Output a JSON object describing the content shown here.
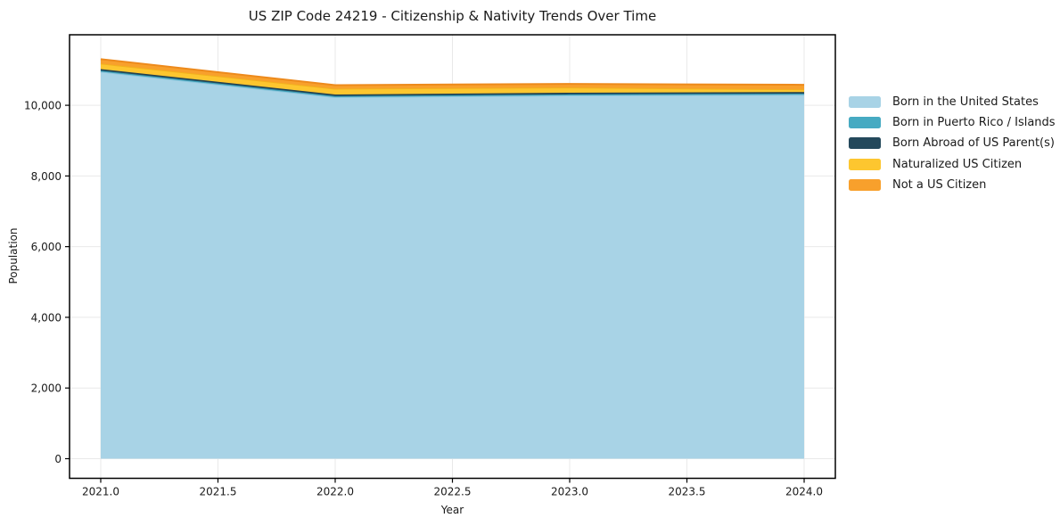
{
  "chart_data": {
    "type": "area",
    "stacked": true,
    "title": "US ZIP Code 24219 - Citizenship & Nativity Trends Over Time",
    "xlabel": "Year",
    "ylabel": "Population",
    "x": [
      2021,
      2022,
      2023,
      2024
    ],
    "series": [
      {
        "name": "Born in the United States",
        "color": "#a8d3e6",
        "line_color": "#8ec6dd",
        "values": [
          10950,
          10230,
          10280,
          10300
        ]
      },
      {
        "name": "Born in Puerto Rico / Islands",
        "color": "#46aac2",
        "line_color": "#3b9cb4",
        "values": [
          30,
          30,
          30,
          30
        ]
      },
      {
        "name": "Born Abroad of US Parent(s)",
        "color": "#24495c",
        "line_color": "#1e3f50",
        "values": [
          45,
          45,
          45,
          45
        ]
      },
      {
        "name": "Naturalized US Citizen",
        "color": "#fdc62f",
        "line_color": "#f2b11d",
        "values": [
          155,
          165,
          150,
          75
        ]
      },
      {
        "name": "Not a US Citizen",
        "color": "#f8a02c",
        "line_color": "#ed8a1c",
        "values": [
          125,
          100,
          100,
          130
        ]
      }
    ],
    "xlim": [
      2020.867,
      2024.133
    ],
    "ylim": [
      -555,
      11995
    ],
    "xticks": [
      2021.0,
      2021.5,
      2022.0,
      2022.5,
      2023.0,
      2023.5,
      2024.0
    ],
    "xtick_labels": [
      "2021.0",
      "2021.5",
      "2022.0",
      "2022.5",
      "2023.0",
      "2023.5",
      "2024.0"
    ],
    "yticks": [
      0,
      2000,
      4000,
      6000,
      8000,
      10000
    ],
    "ytick_labels": [
      "0",
      "2,000",
      "4,000",
      "6,000",
      "8,000",
      "10,000"
    ],
    "grid": true,
    "grid_color": "#e9e9e9",
    "axis_color": "#000000",
    "text_color": "#1a1a1a",
    "legend_position": "right"
  }
}
